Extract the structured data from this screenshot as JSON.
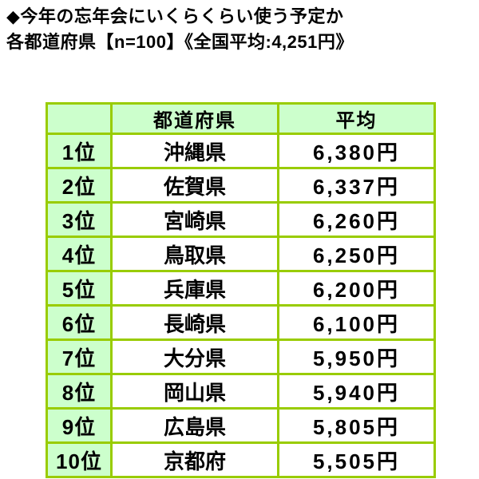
{
  "title": {
    "line1": "◆今年の忘年会にいくらくらい使う予定か",
    "line2": "各都道府県【n=100】《全国平均:4,251円》"
  },
  "table": {
    "headers": {
      "rank": "",
      "prefecture": "都道府県",
      "average": "平均"
    },
    "rows": [
      {
        "rank": "1位",
        "prefecture": "沖縄県",
        "average": "6,380円"
      },
      {
        "rank": "2位",
        "prefecture": "佐賀県",
        "average": "6,337円"
      },
      {
        "rank": "3位",
        "prefecture": "宮崎県",
        "average": "6,260円"
      },
      {
        "rank": "4位",
        "prefecture": "鳥取県",
        "average": "6,250円"
      },
      {
        "rank": "5位",
        "prefecture": "兵庫県",
        "average": "6,200円"
      },
      {
        "rank": "6位",
        "prefecture": "長崎県",
        "average": "6,100円"
      },
      {
        "rank": "7位",
        "prefecture": "大分県",
        "average": "5,950円"
      },
      {
        "rank": "8位",
        "prefecture": "岡山県",
        "average": "5,940円"
      },
      {
        "rank": "9位",
        "prefecture": "広島県",
        "average": "5,805円"
      },
      {
        "rank": "10位",
        "prefecture": "京都府",
        "average": "5,505円"
      }
    ]
  },
  "colors": {
    "table_border": "#99cc00",
    "cell_fill_green": "#ccffcc",
    "cell_fill_white": "#ffffff",
    "text": "#000000",
    "page_background": "#ffffff"
  },
  "chart_data": {
    "type": "table",
    "title": "◆今年の忘年会にいくらくらい使う予定か 各都道府県【n=100】《全国平均:4,251円》",
    "columns": [
      "",
      "都道府県",
      "平均"
    ],
    "sample_size_per_prefecture": 100,
    "national_average_yen": 4251,
    "rows": [
      {
        "rank": 1,
        "prefecture": "沖縄県",
        "average_yen": 6380
      },
      {
        "rank": 2,
        "prefecture": "佐賀県",
        "average_yen": 6337
      },
      {
        "rank": 3,
        "prefecture": "宮崎県",
        "average_yen": 6260
      },
      {
        "rank": 4,
        "prefecture": "鳥取県",
        "average_yen": 6250
      },
      {
        "rank": 5,
        "prefecture": "兵庫県",
        "average_yen": 6200
      },
      {
        "rank": 6,
        "prefecture": "長崎県",
        "average_yen": 6100
      },
      {
        "rank": 7,
        "prefecture": "大分県",
        "average_yen": 5950
      },
      {
        "rank": 8,
        "prefecture": "岡山県",
        "average_yen": 5940
      },
      {
        "rank": 9,
        "prefecture": "広島県",
        "average_yen": 5805
      },
      {
        "rank": 10,
        "prefecture": "京都府",
        "average_yen": 5505
      }
    ]
  }
}
